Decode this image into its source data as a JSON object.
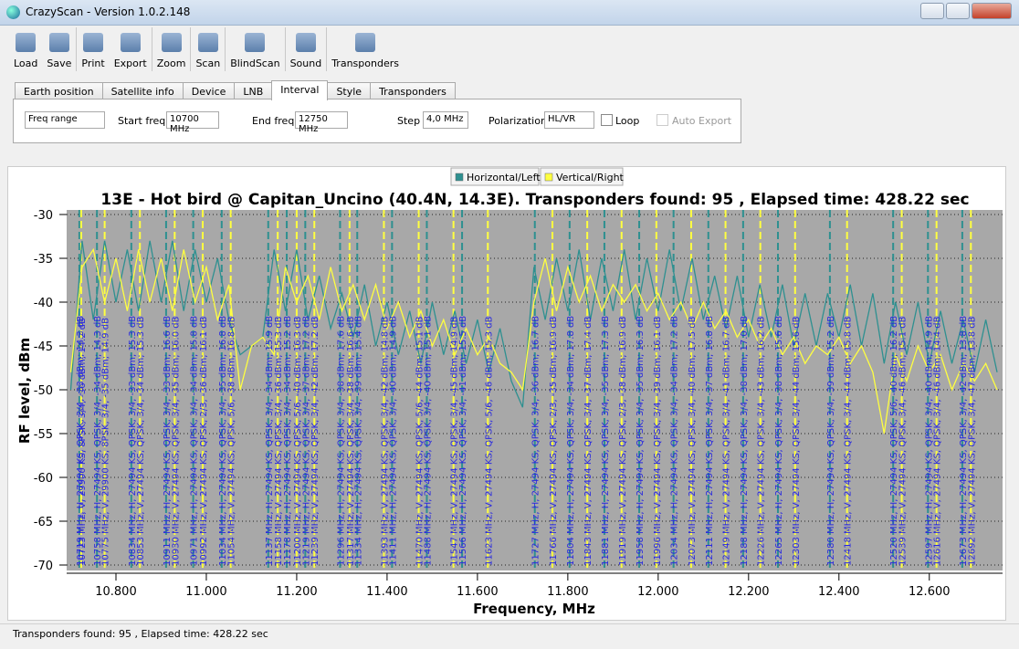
{
  "window": {
    "title": "CrazyScan - Version 1.0.2.148"
  },
  "toolbar": {
    "buttons": [
      "Load",
      "Save",
      "Print",
      "Export",
      "Zoom",
      "Scan",
      "BlindScan",
      "Sound",
      "Transponders"
    ]
  },
  "tabs": {
    "items": [
      "Earth position",
      "Satellite info",
      "Device",
      "LNB",
      "Interval",
      "Style",
      "Transponders"
    ],
    "active": 4
  },
  "interval": {
    "mode": "Freq range",
    "start_label": "Start freq",
    "start_value": "10700 MHz",
    "end_label": "End freq",
    "end_value": "12750 MHz",
    "step_label": "Step",
    "step_value": "4,0 MHz",
    "polarization_label": "Polarization",
    "polarization_value": "HL/VR",
    "loop_label": "Loop",
    "auto_export_label": "Auto Export"
  },
  "chart_data": {
    "type": "line",
    "title": "13E - Hot bird @ Capitan_Uncino (40.4N, 14.3E). Transponders found: 95 , Elapsed time: 428.22 sec",
    "x_label": "Frequency, MHz",
    "y_label": "RF level, dBm",
    "grid": true,
    "legend": "top",
    "xlim": [
      10700,
      12750
    ],
    "xticks": [
      {
        "value": 10800,
        "label": "10.800"
      },
      {
        "value": 11000,
        "label": "11.000"
      },
      {
        "value": 11200,
        "label": "11.200"
      },
      {
        "value": 11400,
        "label": "11.400"
      },
      {
        "value": 11600,
        "label": "11.600"
      },
      {
        "value": 11800,
        "label": "11.800"
      },
      {
        "value": 12000,
        "label": "12.000"
      },
      {
        "value": 12200,
        "label": "12.200"
      },
      {
        "value": 12400,
        "label": "12.400"
      },
      {
        "value": 12600,
        "label": "12.600"
      }
    ],
    "ylim": [
      -70,
      -30
    ],
    "yticks": [
      -30,
      -35,
      -40,
      -45,
      -50,
      -55,
      -60,
      -65,
      -70
    ],
    "x": [
      10700,
      10725,
      10750,
      10775,
      10800,
      10825,
      10850,
      10875,
      10900,
      10925,
      10950,
      10975,
      11000,
      11025,
      11050,
      11075,
      11100,
      11125,
      11150,
      11175,
      11200,
      11225,
      11250,
      11275,
      11300,
      11325,
      11350,
      11375,
      11400,
      11425,
      11450,
      11475,
      11500,
      11525,
      11550,
      11575,
      11600,
      11625,
      11650,
      11675,
      11700,
      11725,
      11750,
      11775,
      11800,
      11825,
      11850,
      11875,
      11900,
      11925,
      11950,
      11975,
      12000,
      12025,
      12050,
      12075,
      12100,
      12125,
      12150,
      12175,
      12200,
      12225,
      12250,
      12275,
      12300,
      12325,
      12350,
      12375,
      12400,
      12425,
      12450,
      12475,
      12500,
      12525,
      12550,
      12575,
      12600,
      12625,
      12650,
      12675,
      12700,
      12725,
      12750
    ],
    "series": [
      {
        "name": "Horizontal/Left",
        "color": "#2e9090",
        "values": [
          -50,
          -33,
          -42,
          -33,
          -40,
          -34,
          -41,
          -33,
          -40,
          -33,
          -41,
          -34,
          -40,
          -35,
          -42,
          -46,
          -45,
          -44,
          -34,
          -41,
          -34,
          -42,
          -37,
          -43,
          -39,
          -44,
          -38,
          -45,
          -40,
          -46,
          -41,
          -47,
          -40,
          -46,
          -41,
          -47,
          -42,
          -48,
          -43,
          -49,
          -52,
          -36,
          -42,
          -35,
          -41,
          -34,
          -42,
          -35,
          -41,
          -34,
          -42,
          -35,
          -41,
          -34,
          -41,
          -35,
          -42,
          -37,
          -43,
          -37,
          -44,
          -38,
          -44,
          -38,
          -45,
          -39,
          -45,
          -39,
          -44,
          -38,
          -45,
          -39,
          -47,
          -40,
          -46,
          -40,
          -47,
          -41,
          -47,
          -42,
          -48,
          -42,
          -48
        ],
        "transponders": [
          {
            "freq": 10719,
            "label": "10719 MHz, H, 27494 KS, QPSK, 3/4, -33 dBm; 14.3 dB"
          },
          {
            "freq": 10758,
            "label": "10758 MHz, H, 27494 KS, QPSK, 3/4, -34 dBm; 14.3 dB"
          },
          {
            "freq": 10834,
            "label": "10834 MHz, H, 27494 KS, QPSK, 3/4, -33 dBm; 15.3 dB"
          },
          {
            "freq": 10911,
            "label": "10911 MHz, H, 27494 KS, QPSK, 3/4, -33 dBm; 16.6 dB"
          },
          {
            "freq": 10971,
            "label": "10971 MHz, H, 27494 KS, QPSK, 3/4, -34 dBm; 15.8 dB"
          },
          {
            "freq": 11034,
            "label": "11034 MHz, H, 27494 KS, QPSK, 3/4, -35 dBm; 16.8 dB"
          },
          {
            "freq": 11137,
            "label": "11137 MHz, H, 27494 KS, QPSK, 3/4, -34 dBm; 15.9 dB"
          },
          {
            "freq": 11178,
            "label": "11178 MHz, H, 27494 KS, QPSK, 3/4, -34 dBm; 15.2 dB"
          },
          {
            "freq": 11219,
            "label": "11219 MHz, H, 27494 KS, QPSK, 3/4, -37 dBm; 17.2 dB"
          },
          {
            "freq": 11296,
            "label": "11296 MHz, H, 27494 KS, QPSK, 3/4, -38 dBm; 17.6 dB"
          },
          {
            "freq": 11334,
            "label": "11334 MHz, H, 27494 KS, QPSK, 3/4, -39 dBm; 15.4 dB"
          },
          {
            "freq": 11411,
            "label": "11411 MHz, H, 27494 KS, QPSK, 3/4, -40 dBm; 14.9 dB"
          },
          {
            "freq": 11488,
            "label": "11488 MHz, H, 27494 KS, QPSK, 3/4, -40 dBm; 15.1 dB"
          },
          {
            "freq": 11566,
            "label": "11566 MHz, H, 27494 KS, QPSK, 3/4, -41 dBm; 15.5 dB"
          },
          {
            "freq": 11727,
            "label": "11727 MHz, H, 27494 KS, QPSK, 3/4, -36 dBm; 16.7 dB"
          },
          {
            "freq": 11804,
            "label": "11804 MHz, H, 27494 KS, QPSK, 3/4, -34 dBm; 17.8 dB"
          },
          {
            "freq": 11881,
            "label": "11881 MHz, H, 27494 KS, QPSK, 3/4, -35 dBm; 17.3 dB"
          },
          {
            "freq": 11958,
            "label": "11958 MHz, H, 27494 KS, QPSK, 3/4, -35 dBm; 16.3 dB"
          },
          {
            "freq": 12034,
            "label": "12034 MHz, H, 27494 KS, QPSK, 3/4, -34 dBm; 17.2 dB"
          },
          {
            "freq": 12111,
            "label": "12111 MHz, H, 27494 KS, QPSK, 3/4, -37 dBm; 16.8 dB"
          },
          {
            "freq": 12188,
            "label": "12188 MHz, H, 27494 KS, QPSK, 3/4, -38 dBm; 17.0 dB"
          },
          {
            "freq": 12265,
            "label": "12265 MHz, H, 27494 KS, QPSK, 3/4, -38 dBm; 15.6 dB"
          },
          {
            "freq": 12380,
            "label": "12380 MHz, H, 27494 KS, QPSK, 3/4, -39 dBm; 15.2 dB"
          },
          {
            "freq": 12520,
            "label": "12520 MHz, H, 27494 KS, QPSK, 5/6, -40 dBm; 16.2 dB"
          },
          {
            "freq": 12597,
            "label": "12597 MHz, H, 27494 KS, QPSK, 3/4, -40 dBm; 14.9 dB"
          },
          {
            "freq": 12673,
            "label": "12673 MHz, H, 27494 KS, QPSK, 3/4, -42 dBm; 13.8 dB"
          }
        ]
      },
      {
        "name": "Vertical/Right",
        "color": "#ffff40",
        "values": [
          -48,
          -36,
          -34,
          -40,
          -35,
          -41,
          -34,
          -40,
          -35,
          -41,
          -34,
          -40,
          -36,
          -42,
          -38,
          -50,
          -45,
          -44,
          -46,
          -36,
          -40,
          -37,
          -42,
          -36,
          -41,
          -38,
          -42,
          -38,
          -43,
          -40,
          -44,
          -41,
          -45,
          -42,
          -46,
          -43,
          -46,
          -44,
          -47,
          -48,
          -50,
          -40,
          -35,
          -41,
          -36,
          -40,
          -37,
          -41,
          -38,
          -40,
          -38,
          -41,
          -39,
          -42,
          -40,
          -43,
          -40,
          -43,
          -41,
          -44,
          -42,
          -45,
          -43,
          -46,
          -44,
          -47,
          -45,
          -46,
          -44,
          -47,
          -45,
          -48,
          -55,
          -46,
          -49,
          -45,
          -48,
          -46,
          -50,
          -47,
          -49,
          -47,
          -50
        ],
        "transponders": [
          {
            "freq": 10723,
            "label": "10723 MHz, V, 29900 KS, 8PSK, 3/4, -36 dBm; 14.2 dB"
          },
          {
            "freq": 10775,
            "label": "10775 MHz, V, 29900 KS, 8PSK, 3/4, -35 dBm; 14.9 dB"
          },
          {
            "freq": 10853,
            "label": "10853 MHz, V, 27494 KS, QPSK, 3/4, -34 dBm; 15.3 dB"
          },
          {
            "freq": 10930,
            "label": "10930 MHz, V, 27494 KS, QPSK, 3/4, -35 dBm; 16.0 dB"
          },
          {
            "freq": 10992,
            "label": "10992 MHz, V, 27494 KS, QPSK, 2/3, -36 dBm; 16.1 dB"
          },
          {
            "freq": 11054,
            "label": "11054 MHz, V, 27494 KS, QPSK, 5/6, -38 dBm; 16.8 dB"
          },
          {
            "freq": 11158,
            "label": "11158 MHz, V, 27494 KS, QPSK, 3/4, -36 dBm; 15.3 dB"
          },
          {
            "freq": 11200,
            "label": "11200 MHz, V, 27494 KS, QPSK, 5/6, -40 dBm; 16.3 dB"
          },
          {
            "freq": 11239,
            "label": "11239 MHz, V, 27494 KS, QPSK, 3/4, -42 dBm; 17.2 dB"
          },
          {
            "freq": 11317,
            "label": "11317 MHz, V, 27494 KS, QPSK, 3/4, -38 dBm; 16.6 dB"
          },
          {
            "freq": 11393,
            "label": "11393 MHz, V, 27494 KS, QPSK, 3/4, -42 dBm; 14.8 dB"
          },
          {
            "freq": 11470,
            "label": "11470 MHz, V, 27494 KS, QPSK, 5/6, -44 dBm; 15.1 dB"
          },
          {
            "freq": 11547,
            "label": "11547 MHz, V, 27494 KS, QPSK, 3/4, -45 dBm; 14.9 dB"
          },
          {
            "freq": 11623,
            "label": "11623 MHz, V, 27494 KS, QPSK, 5/6, -46 dBm; 15.3 dB"
          },
          {
            "freq": 11766,
            "label": "11766 MHz, V, 27494 KS, QPSK, 2/3, -35 dBm; 16.9 dB"
          },
          {
            "freq": 11843,
            "label": "11843 MHz, V, 27494 KS, QPSK, 3/4, -37 dBm; 17.4 dB"
          },
          {
            "freq": 11919,
            "label": "11919 MHz, V, 27494 KS, QPSK, 2/3, -38 dBm; 16.9 dB"
          },
          {
            "freq": 11996,
            "label": "11996 MHz, V, 27494 KS, QPSK, 3/4, -39 dBm; 16.1 dB"
          },
          {
            "freq": 12073,
            "label": "12073 MHz, V, 27494 KS, QPSK, 3/4, -40 dBm; 17.5 dB"
          },
          {
            "freq": 12149,
            "label": "12149 MHz, V, 27494 KS, QPSK, 3/4, -41 dBm; 16.7 dB"
          },
          {
            "freq": 12226,
            "label": "12226 MHz, V, 27494 KS, QPSK, 3/4, -43 dBm; 16.2 dB"
          },
          {
            "freq": 12303,
            "label": "12303 MHz, V, 27494 KS, QPSK, 3/4, -44 dBm; 15.6 dB"
          },
          {
            "freq": 12418,
            "label": "12418 MHz, V, 27494 KS, QPSK, 3/4, -44 dBm; 15.8 dB"
          },
          {
            "freq": 12539,
            "label": "12539 MHz, V, 27494 KS, QPSK, 3/4, -46 dBm; 15.1 dB"
          },
          {
            "freq": 12616,
            "label": "12616 MHz, V, 27494 KS, QPSK, 3/4, -46 dBm; 14.4 dB"
          },
          {
            "freq": 12692,
            "label": "12692 MHz, V, 27494 KS, QPSK, 3/4, -47 dBm; 13.8 dB"
          }
        ]
      }
    ]
  },
  "status_bar": {
    "text": "Transponders found: 95 , Elapsed time: 428.22 sec"
  }
}
